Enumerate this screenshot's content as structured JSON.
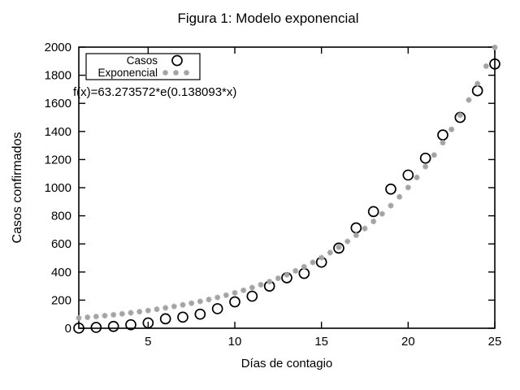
{
  "chart_data": {
    "type": "scatter",
    "title": "Figura 1: Modelo exponencial",
    "xlabel": "Días de contagio",
    "ylabel": "Casos confirmados",
    "xlim": [
      1,
      25
    ],
    "ylim": [
      0,
      2000
    ],
    "x_ticks": [
      5,
      10,
      15,
      20,
      25
    ],
    "y_ticks": [
      0,
      200,
      400,
      600,
      800,
      1000,
      1200,
      1400,
      1600,
      1800,
      2000
    ],
    "grid": false,
    "legend_position": "top-left",
    "annotation": "f(x)=63.273572*e(0.138093*x)",
    "colors": {
      "casos": "#000000",
      "exponencial": "#a3a3a3",
      "axis": "#000000",
      "background": "#ffffff"
    },
    "series": [
      {
        "name": "Casos",
        "marker": "open-circle",
        "color": "#000000",
        "x": [
          1,
          2,
          3,
          4,
          5,
          6,
          7,
          8,
          9,
          10,
          11,
          12,
          13,
          14,
          15,
          16,
          17,
          18,
          19,
          20,
          21,
          22,
          23,
          24,
          25
        ],
        "y": [
          1,
          6,
          13,
          25,
          38,
          67,
          79,
          100,
          139,
          188,
          228,
          300,
          359,
          390,
          470,
          570,
          714,
          830,
          990,
          1090,
          1210,
          1375,
          1500,
          1690,
          1880
        ]
      },
      {
        "name": "Exponencial",
        "marker": "asterisk",
        "color": "#a3a3a3",
        "model": {
          "type": "exponential",
          "a": 63.273572,
          "b": 0.138093
        },
        "x_start": 1,
        "x_end": 25,
        "x_step": 0.5
      }
    ]
  }
}
